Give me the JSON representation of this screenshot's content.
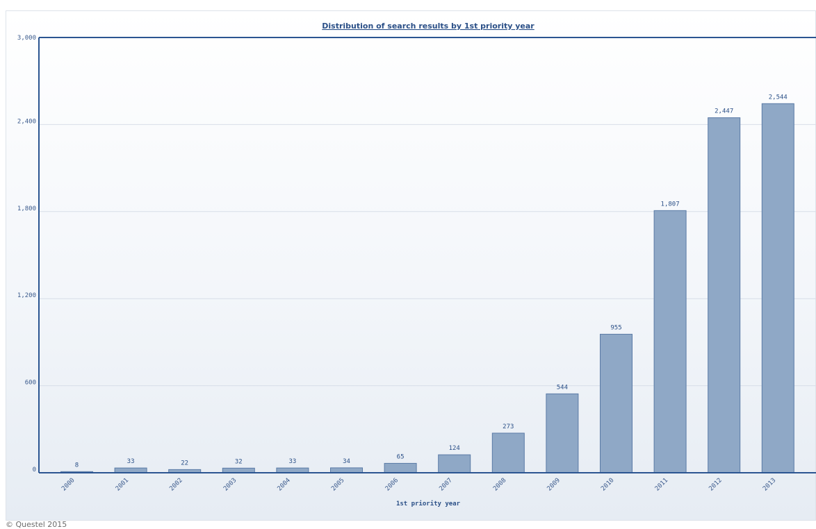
{
  "chart_data": {
    "type": "bar",
    "title": "Distribution of search results by 1st priority year",
    "xlabel": "1st priority year",
    "ylabel": "",
    "categories": [
      "2000",
      "2001",
      "2002",
      "2003",
      "2004",
      "2005",
      "2006",
      "2007",
      "2008",
      "2009",
      "2010",
      "2011",
      "2012",
      "2013"
    ],
    "values": [
      8,
      33,
      22,
      32,
      33,
      34,
      65,
      124,
      273,
      544,
      955,
      1807,
      2447,
      2544
    ],
    "value_labels": [
      "8",
      "33",
      "22",
      "32",
      "33",
      "34",
      "65",
      "124",
      "273",
      "544",
      "955",
      "1,807",
      "2,447",
      "2,544"
    ],
    "ylim": [
      0,
      3000
    ],
    "yticks": [
      0,
      600,
      1200,
      1800,
      2400,
      3000
    ],
    "ytick_labels": [
      "0",
      "600",
      "1,200",
      "1,800",
      "2,400",
      "3,000"
    ],
    "grid": true,
    "colors": {
      "bar_fill": "#8fa8c6",
      "bar_stroke": "#5a7aa6",
      "axis": "#2b5591",
      "grid": "#d7dee8"
    }
  },
  "footer": {
    "copyright": "© Questel 2015"
  }
}
